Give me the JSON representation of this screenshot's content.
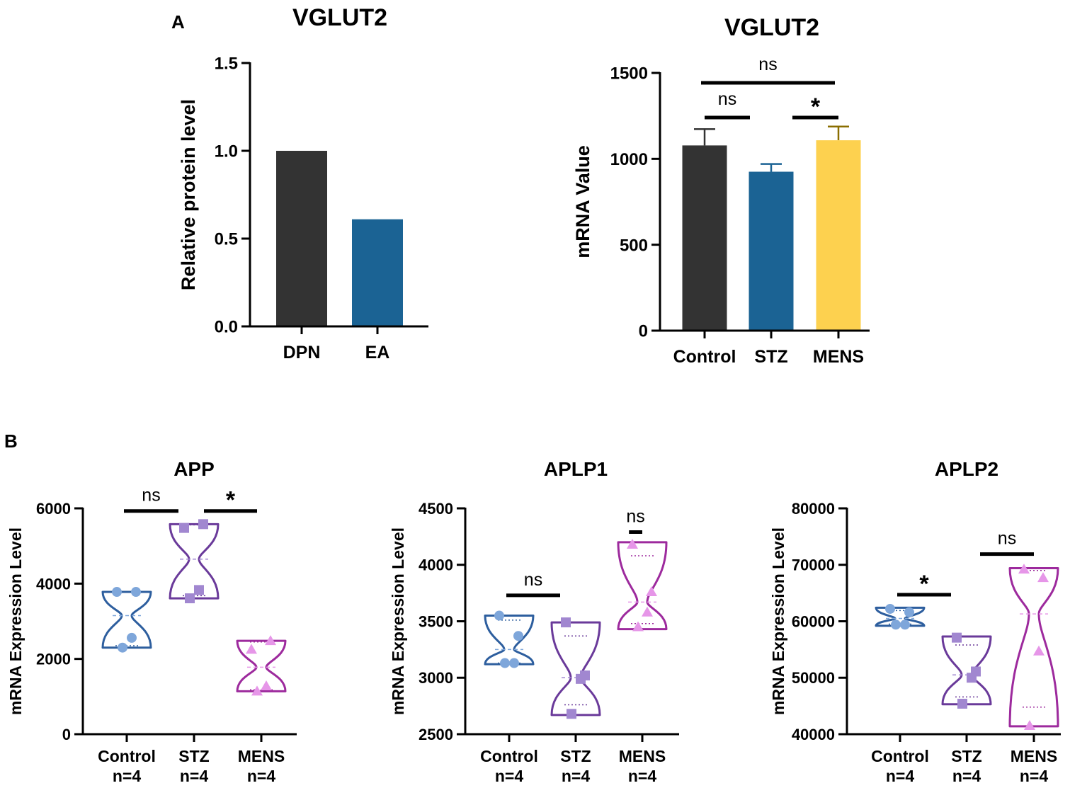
{
  "panel_labels": {
    "a": "A",
    "b": "B"
  },
  "chart_data": [
    {
      "id": "a1",
      "type": "bar",
      "title": "VGLUT2",
      "ylabel": "Relative protein level",
      "xlabel": "",
      "categories": [
        "DPN",
        "EA"
      ],
      "values": [
        1.0,
        0.61
      ],
      "colors": [
        "#333333",
        "#1b6394"
      ],
      "ylim": [
        0,
        1.5
      ],
      "yticks": [
        0.0,
        0.5,
        1.0,
        1.5
      ],
      "ytick_labels": [
        "0.0",
        "0.5",
        "1.0",
        "1.5"
      ],
      "grid": false
    },
    {
      "id": "a2",
      "type": "bar",
      "title": "VGLUT2",
      "ylabel": "mRNA Value",
      "xlabel": "",
      "categories": [
        "Control",
        "STZ",
        "MENS"
      ],
      "values": [
        1078,
        925,
        1108
      ],
      "errors": [
        95,
        45,
        80
      ],
      "colors": [
        "#333333",
        "#1b6394",
        "#fdd14f"
      ],
      "error_colors": [
        "#333333",
        "#1b6394",
        "#8a6e00"
      ],
      "ylim": [
        0,
        1500
      ],
      "yticks": [
        0,
        500,
        1000,
        1500
      ],
      "ytick_labels": [
        "0",
        "500",
        "1000",
        "1500"
      ],
      "significance": [
        {
          "from": 0,
          "to": 1,
          "label": "ns",
          "level": 1
        },
        {
          "from": 1,
          "to": 2,
          "label": "*",
          "level": 1
        },
        {
          "from": 0,
          "to": 2,
          "label": "ns",
          "level": 2
        }
      ],
      "grid": false
    },
    {
      "id": "b1",
      "type": "violin",
      "title": "APP",
      "ylabel": "mRNA Expression Level",
      "categories": [
        "Control",
        "STZ",
        "MENS"
      ],
      "n_labels": [
        "n=4",
        "n=4",
        "n=4"
      ],
      "ylim": [
        0,
        6000
      ],
      "yticks": [
        0,
        2000,
        4000,
        6000
      ],
      "ytick_labels": [
        "0",
        "2000",
        "4000",
        "6000"
      ],
      "series": [
        {
          "name": "Control",
          "color": "#2d5e9e",
          "point_color": "#7ea6da",
          "marker": "circle",
          "values": [
            3780,
            3780,
            2560,
            2300
          ],
          "median": 3150,
          "q1": 2350,
          "q3": 3780,
          "min": 2300,
          "max": 3780
        },
        {
          "name": "STZ",
          "color": "#6a3a9a",
          "point_color": "#a187d0",
          "marker": "square",
          "values": [
            5480,
            5580,
            3830,
            3610
          ],
          "median": 4650,
          "q1": 3680,
          "q3": 5560,
          "min": 3610,
          "max": 5580
        },
        {
          "name": "MENS",
          "color": "#9d2a9d",
          "point_color": "#e696e8",
          "marker": "triangle",
          "values": [
            2250,
            2480,
            1280,
            1140
          ],
          "median": 1780,
          "q1": 1180,
          "q3": 2450,
          "min": 1140,
          "max": 2480
        }
      ],
      "significance": [
        {
          "from": 0,
          "to": 1,
          "label": "ns",
          "y": 5930
        },
        {
          "from": 1,
          "to": 2,
          "label": "*",
          "y": 5930
        }
      ]
    },
    {
      "id": "b2",
      "type": "violin",
      "title": "APLP1",
      "ylabel": "mRNA Expression Level",
      "categories": [
        "Control",
        "STZ",
        "MENS"
      ],
      "n_labels": [
        "n=4",
        "n=4",
        "n=4"
      ],
      "ylim": [
        2500,
        4500
      ],
      "yticks": [
        2500,
        3000,
        3500,
        4000,
        4500
      ],
      "ytick_labels": [
        "2500",
        "3000",
        "3500",
        "4000",
        "4500"
      ],
      "series": [
        {
          "name": "Control",
          "color": "#2d5e9e",
          "point_color": "#7ea6da",
          "marker": "circle",
          "values": [
            3550,
            3370,
            3130,
            3130
          ],
          "median": 3250,
          "q1": 3130,
          "q3": 3510,
          "min": 3120,
          "max": 3550
        },
        {
          "name": "STZ",
          "color": "#6a3a9a",
          "point_color": "#a187d0",
          "marker": "square",
          "values": [
            3490,
            3020,
            2990,
            2680
          ],
          "median": 3000,
          "q1": 2760,
          "q3": 3370,
          "min": 2670,
          "max": 3490
        },
        {
          "name": "MENS",
          "color": "#9d2a9d",
          "point_color": "#e696e8",
          "marker": "triangle",
          "values": [
            4180,
            3760,
            3580,
            3450
          ],
          "median": 3670,
          "q1": 3480,
          "q3": 4080,
          "min": 3430,
          "max": 4200
        }
      ],
      "significance": [
        {
          "from": 0,
          "to": 1,
          "label": "ns",
          "y": 3730
        },
        {
          "from": 1.8,
          "to": 2.2,
          "label": "ns",
          "y": 4290
        }
      ]
    },
    {
      "id": "b3",
      "type": "violin",
      "title": "APLP2",
      "ylabel": "mRNA Expression Level",
      "categories": [
        "Control",
        "STZ",
        "MENS"
      ],
      "n_labels": [
        "n=4",
        "n=4",
        "n=4"
      ],
      "ylim": [
        40000,
        80000
      ],
      "yticks": [
        40000,
        50000,
        60000,
        70000,
        80000
      ],
      "ytick_labels": [
        "40000",
        "50000",
        "60000",
        "70000",
        "80000"
      ],
      "series": [
        {
          "name": "Control",
          "color": "#2d5e9e",
          "point_color": "#7ea6da",
          "marker": "circle",
          "values": [
            62200,
            61600,
            59400,
            59400
          ],
          "median": 60500,
          "q1": 59500,
          "q3": 61900,
          "min": 59200,
          "max": 62400
        },
        {
          "name": "STZ",
          "color": "#6a3a9a",
          "point_color": "#a187d0",
          "marker": "square",
          "values": [
            57100,
            51100,
            50000,
            45400
          ],
          "median": 50500,
          "q1": 46600,
          "q3": 55800,
          "min": 45300,
          "max": 57300
        },
        {
          "name": "MENS",
          "color": "#9d2a9d",
          "point_color": "#e696e8",
          "marker": "triangle",
          "values": [
            69200,
            67700,
            54700,
            41500
          ],
          "median": 61300,
          "q1": 44800,
          "q3": 69000,
          "min": 41400,
          "max": 69400
        }
      ],
      "significance": [
        {
          "from": 0,
          "to": 1,
          "label": "*",
          "y": 64700
        },
        {
          "from": 1.2,
          "to": 2,
          "label": "ns",
          "y": 71900
        }
      ]
    }
  ]
}
